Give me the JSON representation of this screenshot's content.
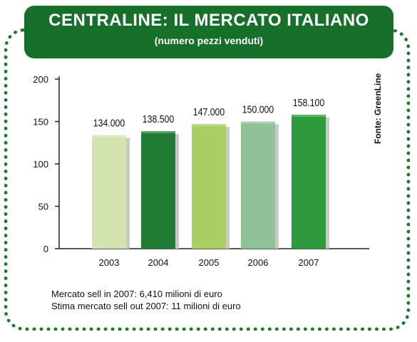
{
  "header": {
    "title": "CENTRALINE: IL MERCATO ITALIANO",
    "subtitle": "(numero pezzi venduti)"
  },
  "source_label": "Fonte: GreenLine",
  "notes": [
    "Mercato sell in 2007: 6,410 milioni di euro",
    "Stima mercato sell out 2007: 11 milioni di euro"
  ],
  "chart_data": {
    "type": "bar",
    "title": "CENTRALINE: IL MERCATO ITALIANO",
    "subtitle": "(numero pezzi venduti)",
    "xlabel": "",
    "ylabel": "",
    "categories": [
      "2003",
      "2004",
      "2005",
      "2006",
      "2007"
    ],
    "values": [
      134.0,
      138.5,
      147.0,
      150.0,
      158.1
    ],
    "data_labels": [
      "134.000",
      "138.500",
      "147.000",
      "150.000",
      "158.100"
    ],
    "ylim": [
      0,
      200
    ],
    "yticks": [
      0,
      50,
      100,
      150,
      200
    ],
    "grid": false,
    "legend": "none",
    "colors": [
      "#d3e3ad",
      "#1e7d32",
      "#a9cf63",
      "#8fc395",
      "#2f9a3d"
    ]
  }
}
